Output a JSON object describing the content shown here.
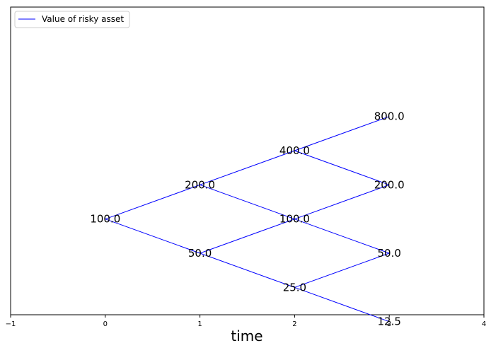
{
  "chart_data": {
    "type": "line",
    "title": "",
    "xlabel": "time",
    "ylabel": "",
    "xlim": [
      -1,
      4
    ],
    "ylim": [
      -180,
      720
    ],
    "xticks": [
      -1,
      0,
      1,
      2,
      3,
      4
    ],
    "xtick_labels": [
      "−1",
      "0",
      "1",
      "2",
      "3",
      "4"
    ],
    "yticks_visible": false,
    "grid": false,
    "legend_placement": "top-left",
    "series": [
      {
        "name": "Value of risky asset",
        "color": "#0000ff"
      }
    ],
    "nodes": [
      {
        "t": 0,
        "y": 100,
        "label": "100.0"
      },
      {
        "t": 1,
        "y": 200,
        "label": "200.0"
      },
      {
        "t": 1,
        "y": 0,
        "label": "50.0"
      },
      {
        "t": 2,
        "y": 300,
        "label": "400.0"
      },
      {
        "t": 2,
        "y": 100,
        "label": "100.0"
      },
      {
        "t": 2,
        "y": -100,
        "label": "25.0"
      },
      {
        "t": 3,
        "y": 400,
        "label": "800.0"
      },
      {
        "t": 3,
        "y": 200,
        "label": "200.0"
      },
      {
        "t": 3,
        "y": 0,
        "label": "50.0"
      },
      {
        "t": 3,
        "y": -200,
        "label": "12.5"
      }
    ],
    "edges": [
      [
        0,
        1
      ],
      [
        0,
        2
      ],
      [
        1,
        3
      ],
      [
        1,
        4
      ],
      [
        2,
        4
      ],
      [
        2,
        5
      ],
      [
        3,
        6
      ],
      [
        3,
        7
      ],
      [
        4,
        7
      ],
      [
        4,
        8
      ],
      [
        5,
        8
      ],
      [
        5,
        9
      ]
    ]
  }
}
